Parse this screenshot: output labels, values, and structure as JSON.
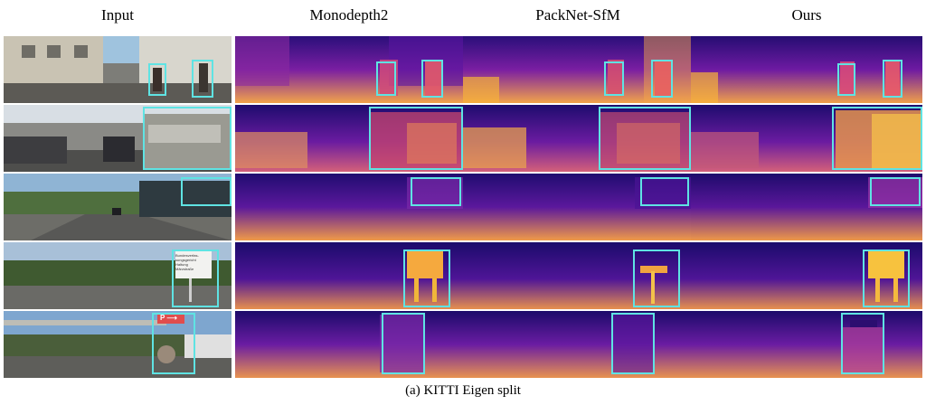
{
  "figure": {
    "columns": [
      "Input",
      "Monodepth2",
      "PackNet-SfM",
      "Ours"
    ],
    "caption": "(a) KITTI Eigen split",
    "rows": [
      {
        "sign_text": ""
      },
      {
        "sign_text": ""
      },
      {
        "sign_text": ""
      },
      {
        "sign_text": "Bundesverfas-\nsungsgericht\nHaltung\nMärzstraße"
      },
      {
        "sign_text": "P ⟶"
      }
    ]
  },
  "colors": {
    "box_highlight": "#5fe3e3",
    "depth_far": "#1b0b6b",
    "depth_mid": "#9a1fa5",
    "depth_near": "#f8c23a"
  }
}
